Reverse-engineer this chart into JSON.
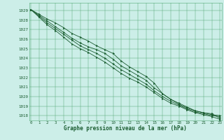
{
  "title": "Graphe pression niveau de la mer (hPa)",
  "bg_color": "#cceee8",
  "grid_color": "#55aa77",
  "line_color": "#1a5c30",
  "xlim": [
    -0.2,
    23.2
  ],
  "ylim": [
    1017.5,
    1029.8
  ],
  "yticks": [
    1018,
    1019,
    1020,
    1021,
    1022,
    1023,
    1024,
    1025,
    1026,
    1027,
    1028,
    1029
  ],
  "xticks": [
    0,
    1,
    2,
    3,
    4,
    5,
    6,
    7,
    8,
    9,
    10,
    11,
    12,
    13,
    14,
    15,
    16,
    17,
    18,
    19,
    20,
    21,
    22,
    23
  ],
  "line1": [
    1029.1,
    1028.6,
    1028.1,
    1027.7,
    1027.2,
    1026.6,
    1026.2,
    1025.8,
    1025.3,
    1024.9,
    1024.5,
    1023.7,
    1023.1,
    1022.6,
    1022.1,
    1021.4,
    1020.3,
    1019.7,
    1019.3,
    1018.9,
    1018.5,
    1018.3,
    1018.2,
    1017.7
  ],
  "line2": [
    1029.1,
    1028.5,
    1027.9,
    1027.3,
    1026.7,
    1026.1,
    1025.6,
    1025.2,
    1024.9,
    1024.5,
    1023.9,
    1023.2,
    1022.7,
    1022.2,
    1021.7,
    1020.9,
    1020.3,
    1019.7,
    1019.2,
    1018.8,
    1018.5,
    1018.3,
    1018.1,
    1018.0
  ],
  "line3": [
    1029.1,
    1028.4,
    1027.7,
    1027.1,
    1026.5,
    1025.9,
    1025.3,
    1024.9,
    1024.5,
    1024.0,
    1023.4,
    1022.8,
    1022.3,
    1021.8,
    1021.3,
    1020.6,
    1020.0,
    1019.5,
    1019.1,
    1018.7,
    1018.4,
    1018.2,
    1018.0,
    1017.9
  ],
  "line4": [
    1029.1,
    1028.3,
    1027.5,
    1026.9,
    1026.2,
    1025.5,
    1025.0,
    1024.6,
    1024.1,
    1023.6,
    1023.0,
    1022.4,
    1021.9,
    1021.5,
    1021.0,
    1020.4,
    1019.8,
    1019.3,
    1019.0,
    1018.6,
    1018.3,
    1018.1,
    1017.9,
    1017.6
  ]
}
